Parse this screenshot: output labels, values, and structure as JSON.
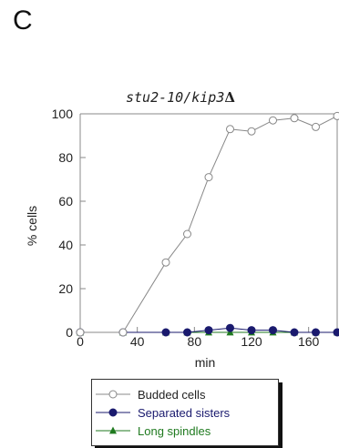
{
  "panel_label": "C",
  "chart_data": {
    "type": "line",
    "title": "stu2-10/kip3",
    "title_symbol": "Δ",
    "xlabel": "min",
    "ylabel": "% cells",
    "xlim": [
      0,
      180
    ],
    "ylim": [
      0,
      100
    ],
    "x_ticks": [
      "0",
      "40",
      "80",
      "120",
      "160"
    ],
    "y_ticks": [
      "0",
      "20",
      "40",
      "60",
      "80",
      "100"
    ],
    "grid": false,
    "legend_position": "bottom",
    "series": [
      {
        "name": "Budded cells",
        "color": "#888888",
        "marker": "open-circle",
        "x": [
          0,
          30,
          60,
          75,
          90,
          105,
          120,
          135,
          150,
          165,
          180
        ],
        "y": [
          0,
          0,
          32,
          45,
          71,
          93,
          92,
          97,
          98,
          94,
          99
        ]
      },
      {
        "name": "Separated sisters",
        "color": "#1a1a6e",
        "marker": "filled-circle",
        "x": [
          0,
          30,
          60,
          75,
          90,
          105,
          120,
          135,
          150,
          165,
          180
        ],
        "y": [
          0,
          0,
          0,
          0,
          1,
          2,
          1,
          1,
          0,
          0,
          0
        ]
      },
      {
        "name": "Long spindles",
        "color": "#1f7a1f",
        "marker": "filled-triangle",
        "x": [
          0,
          30,
          60,
          75,
          90,
          105,
          120,
          135,
          150,
          165,
          180
        ],
        "y": [
          0,
          0,
          0,
          0,
          0,
          0,
          0,
          0,
          0,
          0,
          0
        ]
      }
    ]
  }
}
